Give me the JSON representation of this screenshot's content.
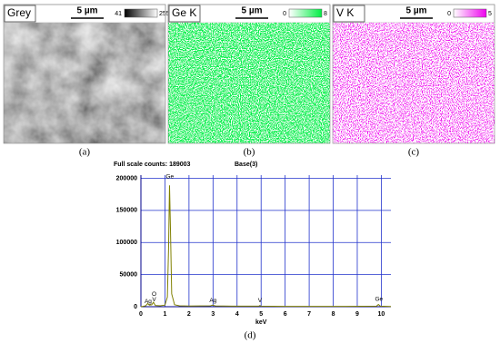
{
  "panels": [
    {
      "label": "Grey",
      "scale": "5 µm",
      "range": [
        41,
        255
      ],
      "colors": [
        "#000000",
        "#ffffff"
      ],
      "caption": "(a)"
    },
    {
      "label": "Ge K",
      "scale": "5 µm",
      "range": [
        0,
        8
      ],
      "colors": [
        "#ffffff",
        "#00ee44"
      ],
      "caption": "(b)"
    },
    {
      "label": "V K",
      "scale": "5 µm",
      "range": [
        0,
        5
      ],
      "colors": [
        "#ffffff",
        "#ee00ee"
      ],
      "caption": "(c)"
    }
  ],
  "chart_data": {
    "type": "line",
    "title": "Full scale counts: 189003",
    "subtitle": "Base(3)",
    "x_label": "keV",
    "caption": "(d)",
    "x": [
      0,
      0.2,
      0.28,
      0.35,
      0.45,
      0.52,
      0.6,
      0.8,
      1.0,
      1.1,
      1.15,
      1.19,
      1.23,
      1.28,
      1.4,
      1.6,
      2.0,
      2.9,
      2.98,
      3.1,
      4.0,
      4.9,
      4.95,
      5.0,
      6,
      8,
      9.8,
      9.88,
      9.96,
      10.4
    ],
    "values": [
      0,
      1500,
      5000,
      2500,
      3000,
      7000,
      2000,
      1500,
      2500,
      15000,
      90000,
      189003,
      120000,
      20000,
      3000,
      1500,
      1000,
      1500,
      2500,
      1200,
      800,
      800,
      1800,
      800,
      600,
      500,
      800,
      3500,
      800,
      300
    ],
    "color": "#808000",
    "xlim": [
      0,
      10.4
    ],
    "xticks": [
      0,
      1,
      2,
      3,
      4,
      5,
      6,
      7,
      8,
      9,
      10
    ],
    "ylim": [
      0,
      205000
    ],
    "yticks": [
      0,
      50000,
      100000,
      150000,
      200000
    ],
    "grid": true,
    "grid_color": "#2233cc",
    "annotations": [
      {
        "text": "Ag",
        "x": 0.3,
        "y": 2500
      },
      {
        "text": "O",
        "x": 0.55,
        "y": 14000
      },
      {
        "text": "V",
        "x": 0.55,
        "y": 5500
      },
      {
        "text": "Ge",
        "x": 1.2,
        "y": 197000
      },
      {
        "text": "Ag",
        "x": 3.0,
        "y": 3500
      },
      {
        "text": "V",
        "x": 4.95,
        "y": 3500
      },
      {
        "text": "Ge",
        "x": 9.9,
        "y": 6000
      }
    ]
  }
}
